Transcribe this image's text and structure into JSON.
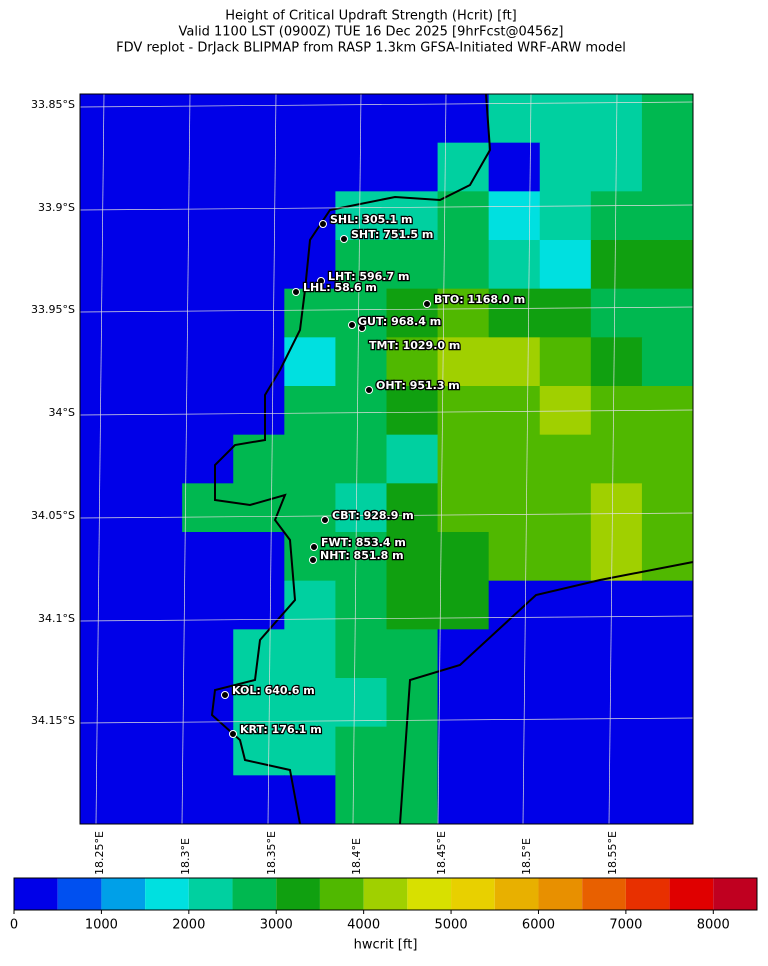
{
  "title_lines": [
    "Height of Critical Updraft Strength (Hcrit) [ft]",
    "Valid 1100 LST (0900Z) TUE 16 Dec 2025 [9hrFcst@0456z]",
    "FDV replot - DrJack BLIPMAP from RASP 1.3km GFSA-Initiated WRF-ARW model"
  ],
  "lat_labels": [
    "33.85°S",
    "33.9°S",
    "33.95°S",
    "34°S",
    "34.05°S",
    "34.1°S",
    "34.15°S"
  ],
  "lon_labels": [
    "18.25°E",
    "18.3°E",
    "18.35°E",
    "18.4°E",
    "18.45°E",
    "18.5°E",
    "18.55°E"
  ],
  "stations": [
    "SHL: 305.1 m",
    "SHT: 751.5 m",
    "LHT: 596.7 m",
    "LHL: 58.6 m",
    "BTO: 1168.0 m",
    "GUT: 968.4 m",
    "TMT: 1029.0 m",
    "OHT: 951.3 m",
    "CBT: 928.9 m",
    "FWT: 853.4 m",
    "NHT: 851.8 m",
    "KOL: 640.6 m",
    "KRT: 176.1 m"
  ],
  "field": {
    "values": [
      [
        250,
        250,
        250,
        250,
        250,
        250,
        250,
        250,
        2250,
        2250,
        2250,
        2750
      ],
      [
        250,
        250,
        250,
        250,
        250,
        250,
        250,
        2250,
        250,
        2250,
        2250,
        2750
      ],
      [
        250,
        250,
        250,
        250,
        250,
        2250,
        2250,
        2750,
        1750,
        2250,
        2750,
        2750
      ],
      [
        250,
        250,
        250,
        250,
        250,
        2750,
        2750,
        2750,
        2250,
        1750,
        3250,
        3250
      ],
      [
        250,
        250,
        250,
        250,
        2750,
        2750,
        3250,
        3750,
        3250,
        3250,
        2750,
        2750
      ],
      [
        250,
        250,
        250,
        250,
        1750,
        2750,
        3750,
        4250,
        4250,
        3750,
        3250,
        2750
      ],
      [
        250,
        250,
        250,
        250,
        2750,
        2750,
        3250,
        3750,
        3750,
        4250,
        3750,
        3750
      ],
      [
        250,
        250,
        250,
        2750,
        2750,
        2750,
        2250,
        3750,
        3750,
        3750,
        3750,
        3750
      ],
      [
        250,
        250,
        2750,
        2750,
        2750,
        2250,
        3250,
        3750,
        3750,
        3750,
        4250,
        3750
      ],
      [
        250,
        250,
        250,
        250,
        2750,
        2750,
        3250,
        3250,
        3750,
        3750,
        4250,
        3750
      ],
      [
        250,
        250,
        250,
        250,
        2250,
        2750,
        3250,
        3250,
        250,
        250,
        250,
        250
      ],
      [
        250,
        250,
        250,
        2250,
        2250,
        2750,
        2750,
        250,
        250,
        250,
        250,
        250
      ],
      [
        250,
        250,
        250,
        2250,
        2250,
        2250,
        2750,
        250,
        250,
        250,
        250,
        250
      ],
      [
        250,
        250,
        250,
        2250,
        2250,
        2750,
        2750,
        250,
        250,
        250,
        250,
        250
      ],
      [
        250,
        250,
        250,
        250,
        250,
        2750,
        2750,
        250,
        250,
        250,
        250,
        250
      ]
    ]
  },
  "colorbar": {
    "label": "hwcrit [ft]",
    "lim": [
      0,
      8500
    ],
    "ticks": [
      0,
      1000,
      2000,
      3000,
      4000,
      5000,
      6000,
      7000,
      8000
    ],
    "bounds": [
      0,
      500,
      1000,
      1500,
      2000,
      2500,
      3000,
      3500,
      4000,
      4500,
      5000,
      5500,
      6000,
      6500,
      7000,
      7500,
      8000,
      8500
    ],
    "colors": [
      "#0000e8",
      "#0050f0",
      "#00a0e8",
      "#00e0e0",
      "#00d0a0",
      "#00b850",
      "#10a010",
      "#50b800",
      "#a0d000",
      "#d8e000",
      "#e8d000",
      "#e8b000",
      "#e89000",
      "#e86000",
      "#e83000",
      "#e00000",
      "#c00020"
    ]
  }
}
